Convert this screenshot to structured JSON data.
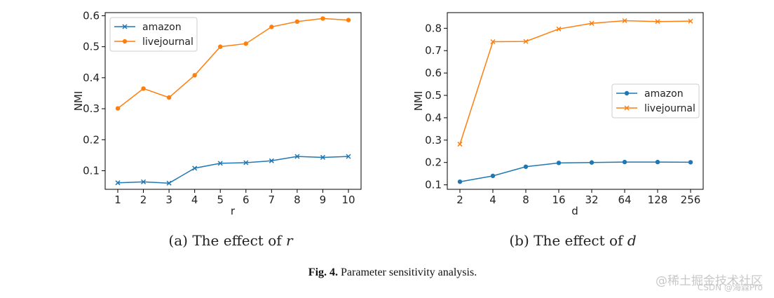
{
  "chart_data": [
    {
      "type": "line",
      "xlabel": "r",
      "ylabel": "NMI",
      "x": [
        1,
        2,
        3,
        4,
        5,
        6,
        7,
        8,
        9,
        10
      ],
      "ylim": [
        0.04,
        0.61
      ],
      "yticks": [
        0.1,
        0.2,
        0.3,
        0.4,
        0.5,
        0.6
      ],
      "yticklabels": [
        "0.1",
        "0.2",
        "0.3",
        "0.4",
        "0.5",
        "0.6"
      ],
      "xticklabels": [
        "1",
        "2",
        "3",
        "4",
        "5",
        "6",
        "7",
        "8",
        "9",
        "10"
      ],
      "legend_position": "top-left",
      "series": [
        {
          "name": "amazon",
          "color": "#1f77b4",
          "marker": "x",
          "values": [
            0.061,
            0.064,
            0.06,
            0.108,
            0.124,
            0.126,
            0.132,
            0.146,
            0.143,
            0.146
          ]
        },
        {
          "name": "livejournal",
          "color": "#ff7f0e",
          "marker": "dot",
          "values": [
            0.301,
            0.365,
            0.336,
            0.408,
            0.5,
            0.51,
            0.564,
            0.581,
            0.591,
            0.586
          ]
        }
      ],
      "caption_label": "(a)",
      "caption_text": "The effect of",
      "caption_var": "r"
    },
    {
      "type": "line",
      "xlabel": "d",
      "ylabel": "NMI",
      "x": [
        2,
        4,
        8,
        16,
        32,
        64,
        128,
        256
      ],
      "ylim": [
        0.08,
        0.87
      ],
      "yticks": [
        0.1,
        0.2,
        0.3,
        0.4,
        0.5,
        0.6,
        0.7,
        0.8
      ],
      "yticklabels": [
        "0.1",
        "0.2",
        "0.3",
        "0.4",
        "0.5",
        "0.6",
        "0.7",
        "0.8"
      ],
      "xticklabels": [
        "2",
        "4",
        "8",
        "16",
        "32",
        "64",
        "128",
        "256"
      ],
      "legend_position": "center-right",
      "series": [
        {
          "name": "amazon",
          "color": "#1f77b4",
          "marker": "dot",
          "values": [
            0.114,
            0.14,
            0.181,
            0.198,
            0.2,
            0.202,
            0.202,
            0.201
          ]
        },
        {
          "name": "livejournal",
          "color": "#ff7f0e",
          "marker": "x",
          "values": [
            0.282,
            0.74,
            0.741,
            0.797,
            0.822,
            0.834,
            0.83,
            0.832
          ]
        }
      ],
      "caption_label": "(b)",
      "caption_text": "The effect of",
      "caption_var": "d"
    }
  ],
  "figure_caption": {
    "label": "Fig. 4.",
    "text": "Parameter sensitivity analysis."
  },
  "watermark": {
    "line1": "@稀土掘金技术社区",
    "line2": "CSDN @海森Pro"
  }
}
